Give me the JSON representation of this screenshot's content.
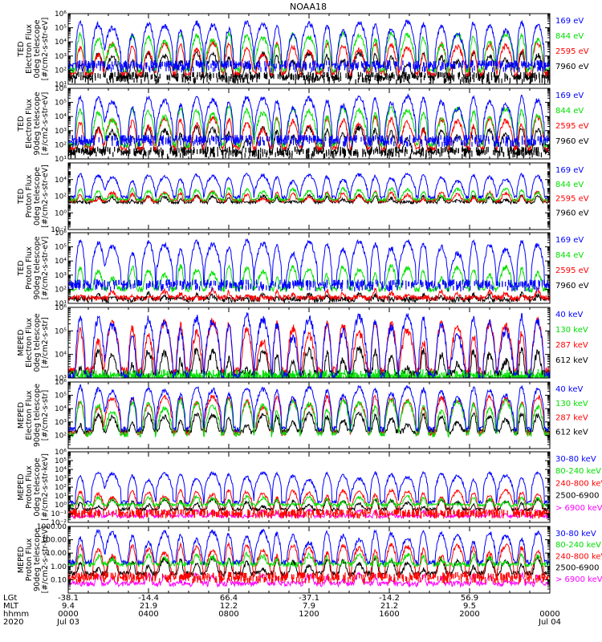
{
  "colors": {
    "blue": "#0000ff",
    "red": "#ff0000",
    "green": "#00e000",
    "black": "#000000",
    "magenta": "#ff00ff"
  },
  "chart_data": {
    "type": "line",
    "title": "NOAA18",
    "panels": [
      {
        "ylabel_lines": [
          "TED",
          "Electron Flux",
          "0deg telescope",
          "[#/cm2-s-str-eV]"
        ],
        "y_log": true,
        "ylim": [
          10,
          1000000
        ],
        "yticks": [
          10,
          100,
          1000,
          10000,
          100000,
          1000000
        ],
        "ytick_labels": [
          "10¹",
          "10²",
          "10³",
          "10⁴",
          "10⁵",
          "10⁶"
        ],
        "series": [
          {
            "name": "7960 eV",
            "color": "#000000",
            "base": 30,
            "peak": 2000,
            "bg_points": true
          },
          {
            "name": "2595 eV",
            "color": "#ff0000",
            "base": 60,
            "peak": 10000,
            "bg_points": false
          },
          {
            "name": "844 eV",
            "color": "#00e000",
            "base": 100,
            "peak": 50000,
            "bg_points": false
          },
          {
            "name": "169 eV",
            "color": "#0000ff",
            "base": 200,
            "peak": 300000,
            "bg_points": true
          }
        ]
      },
      {
        "ylabel_lines": [
          "TED",
          "Electron Flux",
          "90deg telescope",
          "[#/cm2-s-str-eV]"
        ],
        "y_log": true,
        "ylim": [
          10,
          1000000
        ],
        "yticks": [
          10,
          100,
          1000,
          10000,
          100000,
          1000000
        ],
        "ytick_labels": [
          "10¹",
          "10²",
          "10³",
          "10⁴",
          "10⁵",
          "10⁶"
        ],
        "series": [
          {
            "name": "7960 eV",
            "color": "#000000",
            "base": 30,
            "peak": 2000,
            "bg_points": true
          },
          {
            "name": "2595 eV",
            "color": "#ff0000",
            "base": 60,
            "peak": 10000,
            "bg_points": false
          },
          {
            "name": "844 eV",
            "color": "#00e000",
            "base": 100,
            "peak": 50000,
            "bg_points": false
          },
          {
            "name": "169 eV",
            "color": "#0000ff",
            "base": 200,
            "peak": 300000,
            "bg_points": true
          }
        ]
      },
      {
        "ylabel_lines": [
          "TED",
          "Proton Flux",
          "0deg telescope",
          "[#/cm2-s-str-eV]"
        ],
        "y_log": true,
        "ylim": [
          0.01,
          1000000
        ],
        "yticks": [
          0.01,
          1,
          100,
          10000
        ],
        "ytick_labels": [
          "10⁻²",
          "10⁰",
          "10²",
          "10⁴"
        ],
        "series": [
          {
            "name": "7960 eV",
            "color": "#000000",
            "base": 20,
            "peak": 150,
            "bg_points": false
          },
          {
            "name": "2595 eV",
            "color": "#ff0000",
            "base": 30,
            "peak": 400,
            "bg_points": false
          },
          {
            "name": "844 eV",
            "color": "#00e000",
            "base": 40,
            "peak": 1000,
            "bg_points": false
          },
          {
            "name": "169 eV",
            "color": "#0000ff",
            "base": 80,
            "peak": 50000,
            "bg_points": false
          }
        ]
      },
      {
        "ylabel_lines": [
          "TED",
          "Proton Flux",
          "90deg telescope",
          "[#/cm2-s-str-eV]"
        ],
        "y_log": true,
        "ylim": [
          10,
          1000000
        ],
        "yticks": [
          10,
          100,
          1000,
          10000,
          100000,
          1000000
        ],
        "ytick_labels": [
          "10¹",
          "10²",
          "10³",
          "10⁴",
          "10⁵",
          "10⁶"
        ],
        "series": [
          {
            "name": "7960 eV",
            "color": "#000000",
            "base": 20,
            "peak": 60,
            "bg_points": false
          },
          {
            "name": "2595 eV",
            "color": "#ff0000",
            "base": 25,
            "peak": 100,
            "bg_points": false
          },
          {
            "name": "844 eV",
            "color": "#00e000",
            "base": 100,
            "peak": 5000,
            "bg_points": false
          },
          {
            "name": "169 eV",
            "color": "#0000ff",
            "base": 200,
            "peak": 300000,
            "bg_points": true
          }
        ]
      },
      {
        "ylabel_lines": [
          "MEPED",
          "Electron Flux",
          "0deg telescope",
          "[#/cm2-s-str]"
        ],
        "y_log": true,
        "ylim": [
          1000,
          1000000
        ],
        "yticks": [
          1000,
          10000,
          100000,
          1000000
        ],
        "ytick_labels": [
          "10³",
          "10⁴",
          "10⁵",
          "10⁶"
        ],
        "series": [
          {
            "name": "612 keV",
            "color": "#000000",
            "base": 1500,
            "peak": 20000,
            "bg_points": false
          },
          {
            "name": "287 keV",
            "color": "#ff0000",
            "base": 2000,
            "peak": 300000,
            "bg_points": false
          },
          {
            "name": "130 keV",
            "color": "#00e000",
            "base": 1100,
            "peak": 1500,
            "bg_points": true
          },
          {
            "name": "40 keV",
            "color": "#0000ff",
            "base": 1200,
            "peak": 500000,
            "bg_points": false
          }
        ]
      },
      {
        "ylabel_lines": [
          "MEPED",
          "Electron Flux",
          "90deg telescope",
          "[#/cm2-s-str]"
        ],
        "y_log": true,
        "ylim": [
          10,
          1000000
        ],
        "yticks": [
          100,
          1000,
          10000,
          100000,
          1000000
        ],
        "ytick_labels": [
          "10²",
          "10³",
          "10⁴",
          "10⁵",
          "10⁶"
        ],
        "series": [
          {
            "name": "612 keV",
            "color": "#000000",
            "base": 200,
            "peak": 5000,
            "bg_points": false
          },
          {
            "name": "287 keV",
            "color": "#ff0000",
            "base": 150,
            "peak": 100000,
            "bg_points": false
          },
          {
            "name": "130 keV",
            "color": "#00e000",
            "base": 120,
            "peak": 50000,
            "bg_points": false
          },
          {
            "name": "40 keV",
            "color": "#0000ff",
            "base": 300,
            "peak": 500000,
            "bg_points": false
          }
        ]
      },
      {
        "ylabel_lines": [
          "MEPED",
          "Proton Flux",
          "0deg telescope",
          "[#/cm2-s-str-keV]"
        ],
        "y_log": true,
        "ylim": [
          0.01,
          1000000
        ],
        "yticks": [
          0.01,
          0.1,
          1,
          10,
          100,
          1000,
          10000,
          100000,
          1000000
        ],
        "ytick_labels": [
          "10⁻²",
          "10⁻¹",
          "10⁰",
          "10¹",
          "10²",
          "10³",
          "10⁴",
          "10⁵",
          "10⁶"
        ],
        "series": [
          {
            "name": "> 6900 keV",
            "color": "#ff00ff",
            "base": 0.05,
            "peak": 0.3,
            "bg_points": false
          },
          {
            "name": "2500-6900",
            "color": "#000000",
            "base": 0.3,
            "peak": 5,
            "bg_points": false
          },
          {
            "name": "240-800 keV",
            "color": "#ff0000",
            "base": 0.1,
            "peak": 50,
            "bg_points": true
          },
          {
            "name": "80-240 keV",
            "color": "#00e000",
            "base": 1,
            "peak": 10,
            "bg_points": false
          },
          {
            "name": "30-80 keV",
            "color": "#0000ff",
            "base": 2,
            "peak": 5000,
            "bg_points": false
          }
        ]
      },
      {
        "ylabel_lines": [
          "MEPED",
          "Proton Flux",
          "90deg telescope",
          "[#/cm2-s-str-keV]"
        ],
        "y_log": true,
        "ylim": [
          0.01,
          1000
        ],
        "yticks": [
          0.1,
          1,
          10,
          100,
          1000
        ],
        "ytick_labels": [
          "0.10",
          "1.00",
          "10.00",
          "100.00",
          "1000.00"
        ],
        "series": [
          {
            "name": "> 6900 keV",
            "color": "#ff00ff",
            "base": 0.05,
            "peak": 0.3,
            "bg_points": false
          },
          {
            "name": "2500-6900",
            "color": "#000000",
            "base": 0.3,
            "peak": 5,
            "bg_points": false
          },
          {
            "name": "240-800 keV",
            "color": "#ff0000",
            "base": 0.15,
            "peak": 50,
            "bg_points": true
          },
          {
            "name": "80-240 keV",
            "color": "#00e000",
            "base": 1.5,
            "peak": 10,
            "bg_points": false
          },
          {
            "name": "30-80 keV",
            "color": "#0000ff",
            "base": 2,
            "peak": 500,
            "bg_points": false
          }
        ]
      }
    ],
    "x_axis": {
      "row_labels": [
        "LGt",
        "MLT",
        "hhmm",
        "2020"
      ],
      "ticks": [
        {
          "hour": 0,
          "lgt": "-38.1",
          "mlt": "9.4",
          "hhmm": "0000",
          "date": "Jul 03"
        },
        {
          "hour": 4,
          "lgt": "-14.4",
          "mlt": "21.9",
          "hhmm": "0400",
          "date": ""
        },
        {
          "hour": 8,
          "lgt": "66.4",
          "mlt": "12.2",
          "hhmm": "0800",
          "date": ""
        },
        {
          "hour": 12,
          "lgt": "-37.1",
          "mlt": "7.9",
          "hhmm": "1200",
          "date": ""
        },
        {
          "hour": 16,
          "lgt": "-14.2",
          "mlt": "21.2",
          "hhmm": "1600",
          "date": ""
        },
        {
          "hour": 20,
          "lgt": "56.9",
          "mlt": "9.5",
          "hhmm": "2000",
          "date": ""
        },
        {
          "hour": 24,
          "lgt": "",
          "mlt": "",
          "hhmm": "0000",
          "date": "Jul 04"
        }
      ],
      "xlim_hours": [
        0,
        24
      ]
    },
    "pass_peak_hours": [
      0.6,
      1.5,
      2.2,
      3.2,
      4.0,
      4.8,
      5.6,
      6.4,
      7.2,
      8.0,
      8.9,
      9.7,
      10.4,
      11.2,
      12.0,
      12.9,
      13.7,
      14.5,
      15.3,
      16.1,
      16.9,
      17.7,
      18.6,
      19.4,
      20.2,
      21.0,
      21.8,
      22.6,
      23.4
    ]
  }
}
